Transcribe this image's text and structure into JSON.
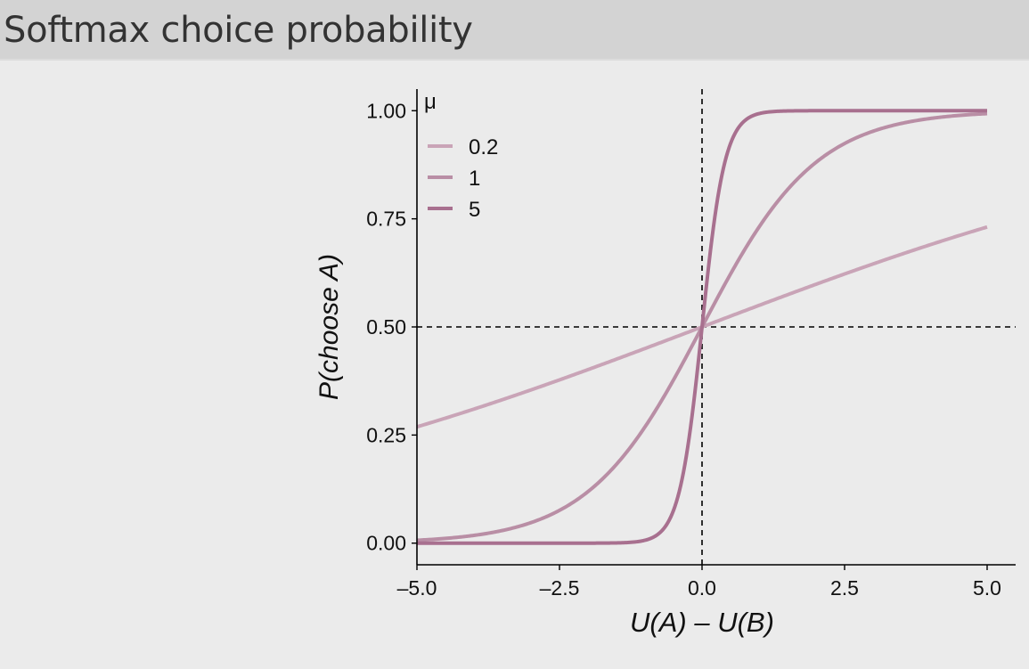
{
  "panel": {
    "title": "Softmax choice probability"
  },
  "chart_data": {
    "type": "line",
    "title": "",
    "xlabel": "U(A) – U(B)",
    "ylabel": "P(choose A)",
    "xlim": [
      -5,
      5.5
    ],
    "ylim": [
      -0.05,
      1.05
    ],
    "x_ticks": [
      -5,
      -2.5,
      0,
      2.5,
      5
    ],
    "x_tick_labels": [
      "–5.0",
      "–2.5",
      "0.0",
      "2.5",
      "5.0"
    ],
    "y_ticks": [
      0,
      0.25,
      0.5,
      0.75,
      1
    ],
    "y_tick_labels": [
      "0.00",
      "0.25",
      "0.50",
      "0.75",
      "1.00"
    ],
    "x_range_plotted": [
      -5,
      5
    ],
    "function": "1 / (1 + exp(-mu * x))",
    "reference_lines": {
      "vertical_x": 0,
      "horizontal_y": 0.5,
      "style": "dashed"
    },
    "grid": false,
    "legend": {
      "title": "μ",
      "placement": "top-left"
    },
    "series": [
      {
        "name": "0.2",
        "mu": 0.2,
        "color": "#c9a4b7"
      },
      {
        "name": "1",
        "mu": 1,
        "color": "#b98ea5"
      },
      {
        "name": "5",
        "mu": 5,
        "color": "#a8708f"
      }
    ]
  }
}
